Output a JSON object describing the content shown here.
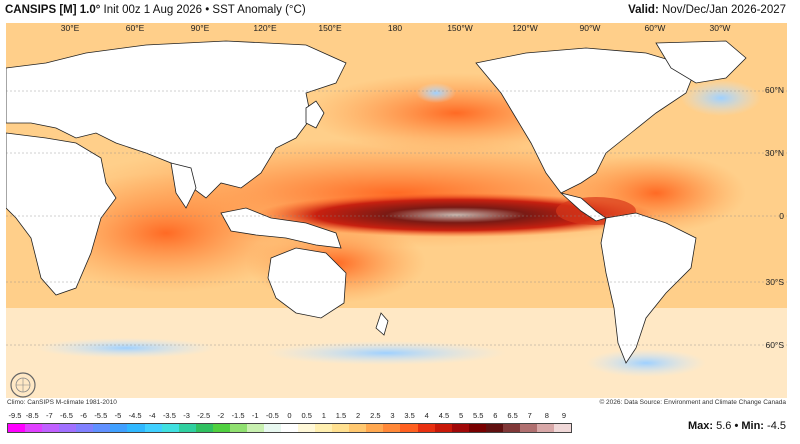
{
  "header": {
    "model": "CANSIPS [M] 1.0°",
    "rest": " Init 00z 1 Aug 2026 • SST Anomaly (°C)",
    "valid_label": "Valid:",
    "valid_value": " Nov/Dec/Jan 2026-2027"
  },
  "lon_labels": [
    "30°E",
    "60°E",
    "90°E",
    "120°E",
    "150°E",
    "180",
    "150°W",
    "120°W",
    "90°W",
    "60°W",
    "30°W"
  ],
  "lat_labels": [
    "60°N",
    "30°N",
    "0",
    "30°S",
    "60°S"
  ],
  "footer": {
    "climo": "Climo: CanSIPS M-climate 1981-2010",
    "credit": "© 2026: Data Source: Environment and Climate Change Canada",
    "max_label": "Max:",
    "max_value": " 5.6",
    "min_label": " • Min:",
    "min_value": " -4.5"
  },
  "colorbar": {
    "labels": [
      "-9.5",
      "-8.5",
      "-7",
      "-6.5",
      "-6",
      "-5.5",
      "-5",
      "-4.5",
      "-4",
      "-3.5",
      "-3",
      "-2.5",
      "-2",
      "-1.5",
      "-1",
      "-0.5",
      "0",
      "0.5",
      "1",
      "1.5",
      "2",
      "2.5",
      "3",
      "3.5",
      "4",
      "4.5",
      "5",
      "5.5",
      "6",
      "6.5",
      "7",
      "8",
      "9"
    ],
    "colors": [
      "#ff00ff",
      "#e040ff",
      "#c060ff",
      "#a070ff",
      "#8080ff",
      "#6090ff",
      "#40a0ff",
      "#30b8ff",
      "#40d0ff",
      "#40e0e0",
      "#30d0a0",
      "#30c060",
      "#50d040",
      "#90e070",
      "#c8f0b0",
      "#e8f8f0",
      "#ffffff",
      "#fff8d8",
      "#ffefb0",
      "#ffe090",
      "#ffc870",
      "#ffa850",
      "#ff8838",
      "#ff6020",
      "#e83010",
      "#c81808",
      "#a00808",
      "#780000",
      "#601010",
      "#803838",
      "#b07070",
      "#d8a8a8",
      "#f0d8d8"
    ]
  },
  "map_colors": {
    "ocean_warm": "#ffd08a",
    "ocean_hot": "#ff7a2e",
    "nino_core": "#6b0c0c",
    "land": "#ffffff",
    "cool": "#bfe2ff"
  }
}
